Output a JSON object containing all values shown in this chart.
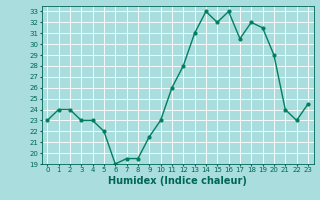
{
  "x": [
    0,
    1,
    2,
    3,
    4,
    5,
    6,
    7,
    8,
    9,
    10,
    11,
    12,
    13,
    14,
    15,
    16,
    17,
    18,
    19,
    20,
    21,
    22,
    23
  ],
  "y": [
    23,
    24,
    24,
    23,
    23,
    22,
    19,
    19.5,
    19.5,
    21.5,
    23,
    26,
    28,
    31,
    33,
    32,
    33,
    30.5,
    32,
    31.5,
    29,
    24,
    23,
    24.5
  ],
  "line_color": "#008060",
  "marker_color": "#008060",
  "bg_color": "#aadddd",
  "grid_color": "#ffffff",
  "xlabel": "Humidex (Indice chaleur)",
  "ylim": [
    19,
    33.5
  ],
  "xlim": [
    -0.5,
    23.5
  ],
  "yticks": [
    19,
    20,
    21,
    22,
    23,
    24,
    25,
    26,
    27,
    28,
    29,
    30,
    31,
    32,
    33
  ],
  "xticks": [
    0,
    1,
    2,
    3,
    4,
    5,
    6,
    7,
    8,
    9,
    10,
    11,
    12,
    13,
    14,
    15,
    16,
    17,
    18,
    19,
    20,
    21,
    22,
    23
  ],
  "tick_label_color": "#006655",
  "tick_fontsize": 5.0,
  "xlabel_fontsize": 7.0,
  "xlabel_color": "#006655",
  "line_width": 1.0,
  "marker_size": 2.0
}
